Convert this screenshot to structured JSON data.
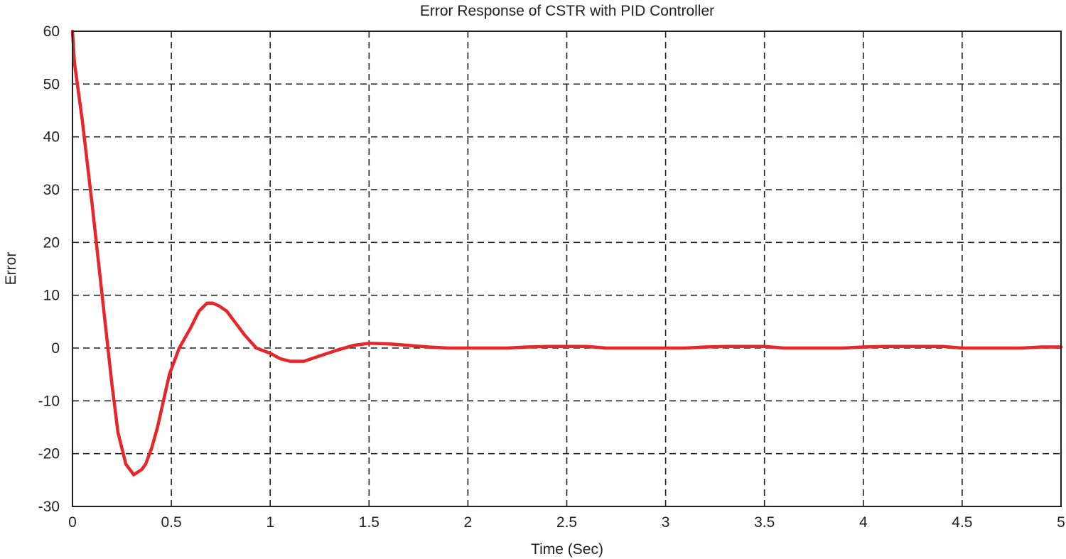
{
  "chart_data": {
    "type": "line",
    "title": "Error Response of CSTR with PID Controller",
    "xlabel": "Time (Sec)",
    "ylabel": "Error",
    "xlim": [
      0,
      5
    ],
    "ylim": [
      -30,
      60
    ],
    "xticks": [
      0,
      0.5,
      1,
      1.5,
      2,
      2.5,
      3,
      3.5,
      4,
      4.5,
      5
    ],
    "xtick_labels": [
      "0",
      "0.5",
      "1",
      "1.5",
      "2",
      "2.5",
      "3",
      "3.5",
      "4",
      "4.5",
      "5"
    ],
    "yticks": [
      -30,
      -20,
      -10,
      0,
      10,
      20,
      30,
      40,
      50,
      60
    ],
    "ytick_labels": [
      "-30",
      "-20",
      "-10",
      "0",
      "10",
      "20",
      "30",
      "40",
      "50",
      "60"
    ],
    "grid": true,
    "grid_style": "dashed",
    "series": [
      {
        "color": "#e8262a",
        "x": [
          0,
          0.01,
          0.05,
          0.1,
          0.15,
          0.2,
          0.23,
          0.27,
          0.31,
          0.35,
          0.37,
          0.4,
          0.43,
          0.46,
          0.49,
          0.54,
          0.6,
          0.64,
          0.68,
          0.71,
          0.74,
          0.78,
          0.82,
          0.87,
          0.93,
          1.0,
          1.05,
          1.1,
          1.17,
          1.25,
          1.33,
          1.42,
          1.5,
          1.6,
          1.7,
          1.8,
          1.9,
          2.0,
          2.1,
          2.2,
          2.3,
          2.4,
          2.5,
          2.6,
          2.7,
          2.8,
          2.9,
          3.0,
          3.1,
          3.2,
          3.3,
          3.4,
          3.5,
          3.6,
          3.7,
          3.8,
          3.9,
          4.0,
          4.1,
          4.2,
          4.3,
          4.4,
          4.5,
          4.6,
          4.7,
          4.8,
          4.9,
          5.0
        ],
        "y": [
          60,
          54,
          43,
          27,
          10,
          -7,
          -16,
          -22,
          -24,
          -23,
          -22,
          -19,
          -15,
          -10,
          -5,
          0,
          4,
          7,
          8.5,
          8.5,
          8,
          7,
          5,
          2.5,
          0,
          -1,
          -2,
          -2.5,
          -2.5,
          -1.5,
          -0.5,
          0.5,
          0.9,
          0.8,
          0.5,
          0.2,
          0,
          0,
          0,
          0,
          0.2,
          0.3,
          0.3,
          0.3,
          0,
          0,
          0,
          0,
          0,
          0.2,
          0.3,
          0.3,
          0.3,
          0,
          0,
          0,
          0,
          0.2,
          0.3,
          0.3,
          0.3,
          0.3,
          0,
          0,
          0,
          0,
          0.2,
          0.2
        ]
      }
    ]
  }
}
